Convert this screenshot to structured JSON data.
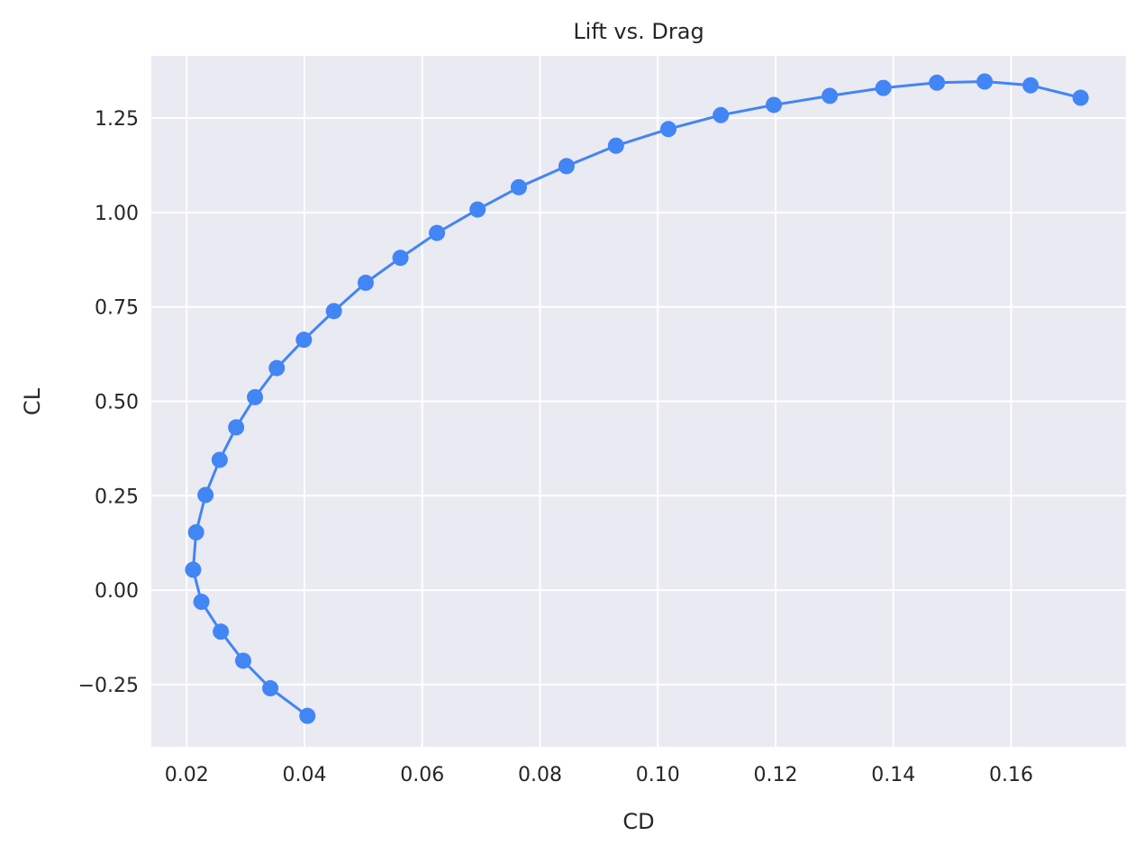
{
  "chart_data": {
    "type": "line",
    "title": "Lift vs. Drag",
    "xlabel": "CD",
    "ylabel": "CL",
    "xlim": [
      0.014,
      0.1795
    ],
    "ylim": [
      -0.415,
      1.415
    ],
    "xticks": [
      0.02,
      0.04,
      0.06,
      0.08,
      0.1,
      0.12,
      0.14,
      0.16
    ],
    "xtick_labels": [
      "0.02",
      "0.04",
      "0.06",
      "0.08",
      "0.10",
      "0.12",
      "0.14",
      "0.16"
    ],
    "yticks": [
      -0.25,
      0.0,
      0.25,
      0.5,
      0.75,
      1.0,
      1.25
    ],
    "ytick_labels": [
      "−0.25",
      "0.00",
      "0.25",
      "0.50",
      "0.75",
      "1.00",
      "1.25"
    ],
    "grid": true,
    "colors": {
      "series": "#4285f4",
      "plot_bg": "#eaeaf2",
      "grid": "#ffffff"
    },
    "series": [
      {
        "x": [
          0.0405,
          0.0342,
          0.0296,
          0.0258,
          0.0225,
          0.0211,
          0.0216,
          0.0232,
          0.0256,
          0.0284,
          0.0316,
          0.0353,
          0.0399,
          0.045,
          0.0504,
          0.0563,
          0.0625,
          0.0694,
          0.0764,
          0.0845,
          0.0929,
          0.1018,
          0.1107,
          0.1197,
          0.1292,
          0.1383,
          0.1474,
          0.1555,
          0.1633,
          0.1718
        ],
        "y": [
          -0.333,
          -0.26,
          -0.187,
          -0.11,
          -0.031,
          0.054,
          0.153,
          0.252,
          0.345,
          0.431,
          0.511,
          0.588,
          0.663,
          0.739,
          0.814,
          0.88,
          0.946,
          1.008,
          1.067,
          1.123,
          1.177,
          1.221,
          1.258,
          1.285,
          1.309,
          1.33,
          1.344,
          1.347,
          1.337,
          1.304
        ]
      }
    ]
  }
}
